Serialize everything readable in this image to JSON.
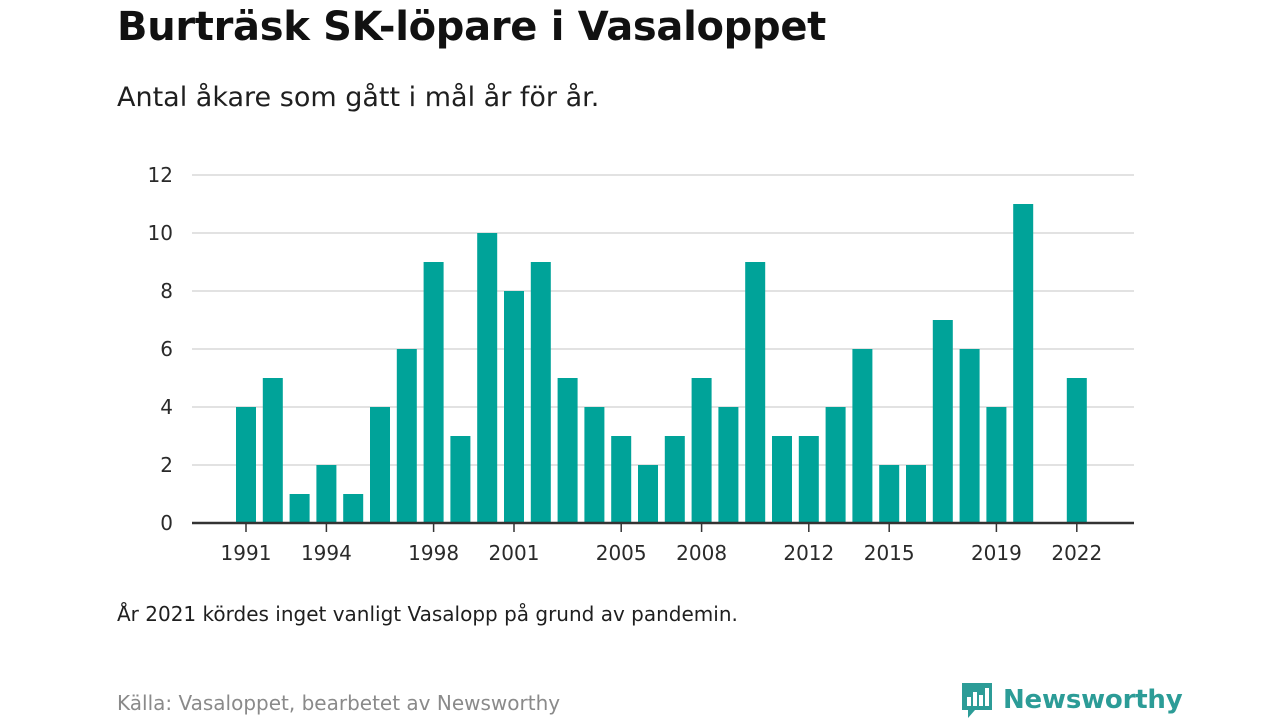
{
  "title": "Burträsk SK-löpare i Vasaloppet",
  "subtitle": "Antal åkare som gått i mål år för år.",
  "note": "År 2021 kördes inget vanligt Vasalopp på grund av pandemin.",
  "source": "Källa: Vasaloppet, bearbetet av Newsworthy",
  "brand": {
    "name": "Newsworthy",
    "logo_icon": "bar-chart-speech-bubble-icon"
  },
  "colors": {
    "bar": "#00a399",
    "grid": "#d9d9d9",
    "axis": "#333333",
    "brand": "#2c9c97"
  },
  "chart_data": {
    "type": "bar",
    "x": [
      1991,
      1992,
      1993,
      1994,
      1995,
      1996,
      1997,
      1998,
      1999,
      2000,
      2001,
      2002,
      2003,
      2004,
      2005,
      2006,
      2007,
      2008,
      2009,
      2010,
      2011,
      2012,
      2013,
      2014,
      2015,
      2016,
      2017,
      2018,
      2019,
      2020,
      2022
    ],
    "values": [
      4,
      5,
      1,
      2,
      1,
      4,
      6,
      9,
      3,
      10,
      8,
      9,
      5,
      4,
      3,
      2,
      3,
      5,
      4,
      9,
      3,
      3,
      4,
      6,
      2,
      2,
      7,
      6,
      4,
      11,
      5
    ],
    "x_ticks": [
      1991,
      1994,
      1998,
      2001,
      2005,
      2008,
      2012,
      2015,
      2019,
      2022
    ],
    "y_ticks": [
      0,
      2,
      4,
      6,
      8,
      10,
      12
    ],
    "xlim": [
      1991,
      2022
    ],
    "ylim": [
      0,
      12
    ],
    "grid": "horizontal",
    "xlabel": "",
    "ylabel": ""
  }
}
